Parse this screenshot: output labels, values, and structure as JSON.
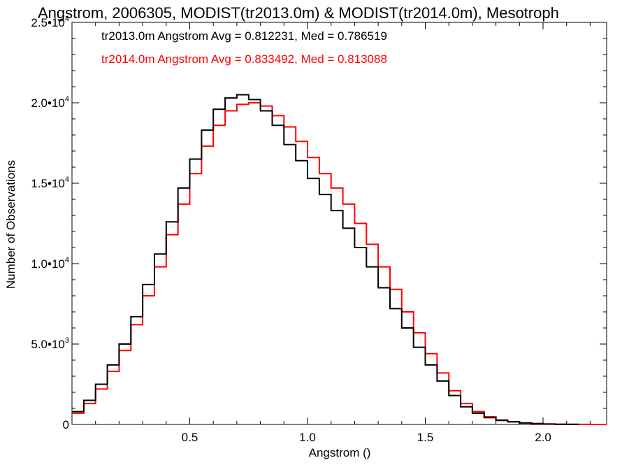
{
  "chart_data": {
    "type": "line",
    "title": "Angstrom, 2006305, MODIST(tr2013.0m) & MODIST(tr2014.0m), Mesotroph",
    "xlabel": "Angstrom ()",
    "ylabel": "Number of Observations",
    "xlim": [
      0.0,
      2.27
    ],
    "ylim": [
      0,
      25000
    ],
    "x_ticks": [
      0.5,
      1.0,
      1.5,
      2.0
    ],
    "x_tick_labels": [
      "0.5",
      "1.0",
      "1.5",
      "2.0"
    ],
    "y_ticks": [
      0,
      5000,
      10000,
      15000,
      20000,
      25000
    ],
    "y_tick_labels": [
      {
        "mantissa": "0",
        "exp": ""
      },
      {
        "mantissa": "5.0•",
        "base": "10",
        "exp": "3"
      },
      {
        "mantissa": "1.0•",
        "base": "10",
        "exp": "4"
      },
      {
        "mantissa": "1.5•",
        "base": "10",
        "exp": "4"
      },
      {
        "mantissa": "2.0•",
        "base": "10",
        "exp": "4"
      },
      {
        "mantissa": "2.5•",
        "base": "10",
        "exp": "4"
      }
    ],
    "grid": false,
    "legend_placement": "top-left",
    "series": [
      {
        "name": "tr2013.0m",
        "legend_text": "tr2013.0m Angstrom Avg = 0.812231, Med = 0.786519",
        "color": "#000000",
        "x": [
          0.0,
          0.05,
          0.1,
          0.15,
          0.2,
          0.25,
          0.3,
          0.35,
          0.4,
          0.45,
          0.5,
          0.55,
          0.6,
          0.65,
          0.7,
          0.75,
          0.8,
          0.85,
          0.9,
          0.95,
          1.0,
          1.05,
          1.1,
          1.15,
          1.2,
          1.25,
          1.3,
          1.35,
          1.4,
          1.45,
          1.5,
          1.55,
          1.6,
          1.65,
          1.7,
          1.75,
          1.8,
          1.85,
          1.9,
          1.95,
          2.0,
          2.05,
          2.1,
          2.15
        ],
        "y": [
          800,
          1500,
          2500,
          3700,
          5000,
          6700,
          8700,
          10600,
          12600,
          14700,
          16500,
          18300,
          19600,
          20300,
          20500,
          20200,
          19500,
          18600,
          17400,
          16400,
          15300,
          14300,
          13300,
          12200,
          11000,
          9800,
          8500,
          7200,
          6000,
          4800,
          3700,
          2700,
          1800,
          1100,
          700,
          420,
          250,
          160,
          90,
          50,
          20,
          10,
          5,
          0
        ]
      },
      {
        "name": "tr2014.0m",
        "legend_text": "tr2014.0m Angstrom Avg = 0.833492, Med = 0.813088",
        "color": "#ff0000",
        "x": [
          0.0,
          0.05,
          0.1,
          0.15,
          0.2,
          0.25,
          0.3,
          0.35,
          0.4,
          0.45,
          0.5,
          0.55,
          0.6,
          0.65,
          0.7,
          0.75,
          0.8,
          0.85,
          0.9,
          0.95,
          1.0,
          1.05,
          1.1,
          1.15,
          1.2,
          1.25,
          1.3,
          1.35,
          1.4,
          1.45,
          1.5,
          1.55,
          1.6,
          1.65,
          1.7,
          1.75,
          1.8,
          1.85,
          1.9,
          1.95,
          2.0,
          2.05,
          2.1,
          2.15,
          2.2,
          2.27
        ],
        "y": [
          700,
          1300,
          2200,
          3300,
          4600,
          6200,
          8000,
          9800,
          11800,
          13700,
          15600,
          17300,
          18600,
          19500,
          19900,
          20000,
          19800,
          19200,
          18500,
          17600,
          16600,
          15600,
          14700,
          13700,
          12500,
          11200,
          9800,
          8400,
          7000,
          5700,
          4400,
          3200,
          2100,
          1300,
          800,
          480,
          280,
          170,
          100,
          60,
          30,
          15,
          8,
          4,
          2,
          0
        ]
      }
    ]
  }
}
